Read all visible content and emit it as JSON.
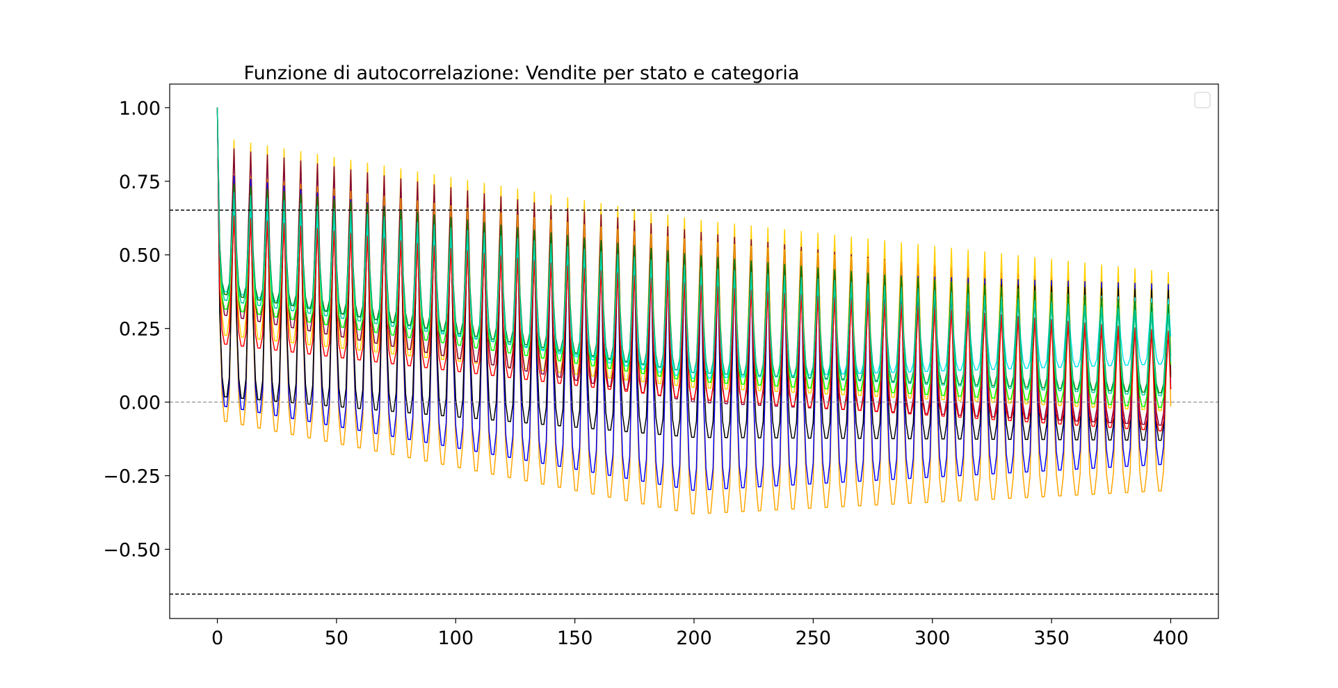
{
  "chart_data": {
    "type": "line",
    "title": "Funzione di autocorrelazione: Vendite per stato e categoria",
    "xlabel": "",
    "ylabel": "",
    "xlim": [
      -20,
      420
    ],
    "ylim": [
      -0.735,
      1.08
    ],
    "x_ticks": [
      0,
      50,
      100,
      150,
      200,
      250,
      300,
      350,
      400
    ],
    "y_ticks": [
      -0.5,
      -0.25,
      0.0,
      0.25,
      0.5,
      0.75,
      1.0
    ],
    "x_tick_labels": [
      "0",
      "50",
      "100",
      "150",
      "200",
      "250",
      "300",
      "350",
      "400"
    ],
    "y_tick_labels": [
      "−0.50",
      "−0.25",
      "0.00",
      "0.25",
      "0.50",
      "0.75",
      "1.00"
    ],
    "period": 7,
    "max_lag": 400,
    "reference_lines": [
      {
        "y": 0.652,
        "style": "dashed",
        "color": "#000000"
      },
      {
        "y": -0.652,
        "style": "dashed",
        "color": "#000000"
      },
      {
        "y": 0.0,
        "style": "dashed",
        "color": "#888888"
      }
    ],
    "legend": {
      "placement": "top-right",
      "entries": []
    },
    "grid": false,
    "series": [
      {
        "color": "#ffd000",
        "peaks": [
          [
            0,
            0.9
          ],
          [
            200,
            0.62
          ],
          [
            400,
            0.44
          ]
        ],
        "troughs": [
          [
            0,
            0.23
          ],
          [
            200,
            0.05
          ],
          [
            400,
            -0.03
          ]
        ]
      },
      {
        "color": "#800040",
        "peaks": [
          [
            0,
            0.87
          ],
          [
            200,
            0.58
          ],
          [
            400,
            0.34
          ]
        ],
        "troughs": [
          [
            0,
            0.3
          ],
          [
            200,
            0.0
          ],
          [
            400,
            -0.08
          ]
        ]
      },
      {
        "color": "#ffa500",
        "peaks": [
          [
            0,
            0.78
          ],
          [
            200,
            0.55
          ],
          [
            400,
            0.38
          ]
        ],
        "troughs": [
          [
            0,
            -0.06
          ],
          [
            200,
            -0.38
          ],
          [
            400,
            -0.3
          ]
        ]
      },
      {
        "color": "#0000ff",
        "peaks": [
          [
            0,
            0.78
          ],
          [
            200,
            0.45
          ],
          [
            400,
            0.4
          ]
        ],
        "troughs": [
          [
            0,
            -0.01
          ],
          [
            200,
            -0.3
          ],
          [
            400,
            -0.21
          ]
        ]
      },
      {
        "color": "#000000",
        "peaks": [
          [
            0,
            0.7
          ],
          [
            200,
            0.43
          ],
          [
            400,
            0.38
          ]
        ],
        "troughs": [
          [
            0,
            0.02
          ],
          [
            200,
            -0.12
          ],
          [
            400,
            -0.13
          ]
        ]
      },
      {
        "color": "#00ff00",
        "peaks": [
          [
            0,
            0.7
          ],
          [
            200,
            0.5
          ],
          [
            400,
            0.33
          ]
        ],
        "troughs": [
          [
            0,
            0.32
          ],
          [
            200,
            0.07
          ],
          [
            400,
            -0.02
          ]
        ]
      },
      {
        "color": "#00e5ee",
        "peaks": [
          [
            0,
            0.68
          ],
          [
            200,
            0.42
          ],
          [
            400,
            0.35
          ]
        ],
        "troughs": [
          [
            0,
            0.38
          ],
          [
            200,
            0.08
          ],
          [
            400,
            0.13
          ]
        ]
      },
      {
        "color": "#008000",
        "peaks": [
          [
            0,
            0.75
          ],
          [
            200,
            0.5
          ],
          [
            400,
            0.33
          ]
        ],
        "troughs": [
          [
            0,
            0.37
          ],
          [
            200,
            0.1
          ],
          [
            400,
            0.03
          ]
        ]
      },
      {
        "color": "#ff0000",
        "peaks": [
          [
            0,
            0.64
          ],
          [
            200,
            0.4
          ],
          [
            400,
            0.24
          ]
        ],
        "troughs": [
          [
            0,
            0.2
          ],
          [
            200,
            0.01
          ],
          [
            400,
            -0.1
          ]
        ]
      },
      {
        "color": "#00cfa0",
        "peaks": [
          [
            0,
            0.72
          ],
          [
            200,
            0.46
          ],
          [
            400,
            0.3
          ]
        ],
        "troughs": [
          [
            0,
            0.35
          ],
          [
            200,
            0.1
          ],
          [
            400,
            0.02
          ]
        ]
      }
    ]
  }
}
